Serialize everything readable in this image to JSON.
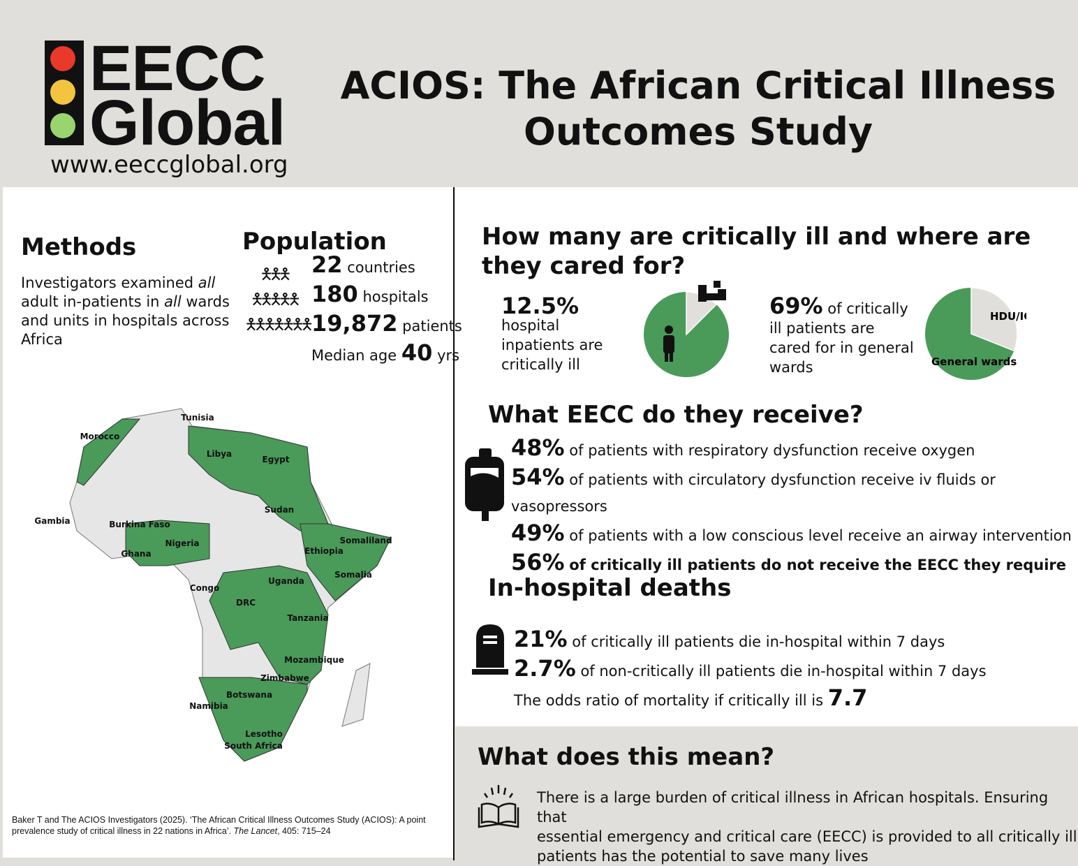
{
  "header": {
    "logo_line1": "EECC",
    "logo_line2": "Global",
    "website": "www.eeccglobal.org",
    "title_line1": "ACIOS: The African Critical Illness",
    "title_line2": "Outcomes Study",
    "traffic_light_colors": [
      "#e8392a",
      "#f2c440",
      "#9ad46f"
    ]
  },
  "methods": {
    "heading": "Methods",
    "text_parts": [
      "Investigators examined ",
      "all",
      "adult in-patients in ",
      "all",
      " wards",
      "and units in hospitals across",
      "Africa"
    ]
  },
  "population": {
    "heading": "Population",
    "countries_num": "22",
    "countries_label": "countries",
    "hospitals_num": "180",
    "hospitals_label": "hospitals",
    "patients_num": "19,872",
    "patients_label": "patients",
    "median_label": "Median age",
    "median_num": "40",
    "median_unit": "yrs"
  },
  "map": {
    "countries": [
      "Tunisia",
      "Morocco",
      "Libya",
      "Egypt",
      "Sudan",
      "Gambia",
      "Burkina Faso",
      "Nigeria",
      "Ghana",
      "Somaliland",
      "Ethiopia",
      "Somalia",
      "Uganda",
      "Congo",
      "DRC",
      "Tanzania",
      "Mozambique",
      "Zimbabwe",
      "Botswana",
      "Namibia",
      "Lesotho",
      "South Africa"
    ],
    "green": "#4a9a5a",
    "gray": "#e6e6e6"
  },
  "citation": {
    "part1": "Baker T and The ACIOS Investigators (2025). ‘The African Critical Illness Outcomes Study (ACIOS): A point prevalence study of critical illness in 22 nations in Africa’. ",
    "journal": "The Lancet",
    "part2": ", 405: 715–24"
  },
  "how_many": {
    "heading_line1": "How many are critically ill and where are",
    "heading_line2": "they cared for?",
    "stat1_num": "12.5%",
    "stat1_text": [
      "hospital",
      "inpatients are",
      "critically ill"
    ],
    "pie1_percent": 12.5,
    "stat2_num": "69%",
    "stat2_text": [
      "of critically",
      "ill patients are",
      "cared for in general",
      "wards"
    ],
    "pie2": {
      "general_wards": 69,
      "hdu_icu": 31,
      "label_hdu": "HDU/ICU",
      "label_general": "General wards"
    }
  },
  "eecc": {
    "heading": "What EECC do they receive?",
    "rows": [
      {
        "num": "48%",
        "text": "of patients with respiratory dysfunction receive oxygen"
      },
      {
        "num": "54%",
        "text": "of patients with circulatory dysfunction receive iv fluids or vasopressors"
      },
      {
        "num": "49%",
        "text": "of patients with a low conscious level receive an airway intervention"
      },
      {
        "num": "56%",
        "text": "of critically ill patients do not receive the EECC they require"
      }
    ]
  },
  "deaths": {
    "heading": "In-hospital deaths",
    "rows": [
      {
        "num": "21%",
        "text": "of critically ill patients die in-hospital within 7 days"
      },
      {
        "num": "2.7%",
        "text": "of non-critically ill patients die in-hospital within 7 days"
      }
    ],
    "odds_text": "The odds ratio of mortality if critically ill is",
    "odds_num": "7.7"
  },
  "meaning": {
    "heading": "What does this mean?",
    "lines": [
      "There is a large burden of critical illness in African hospitals. Ensuring that",
      "essential emergency and critical care (EECC) is provided to all critically ill",
      "patients has the potential to save many lives"
    ]
  }
}
